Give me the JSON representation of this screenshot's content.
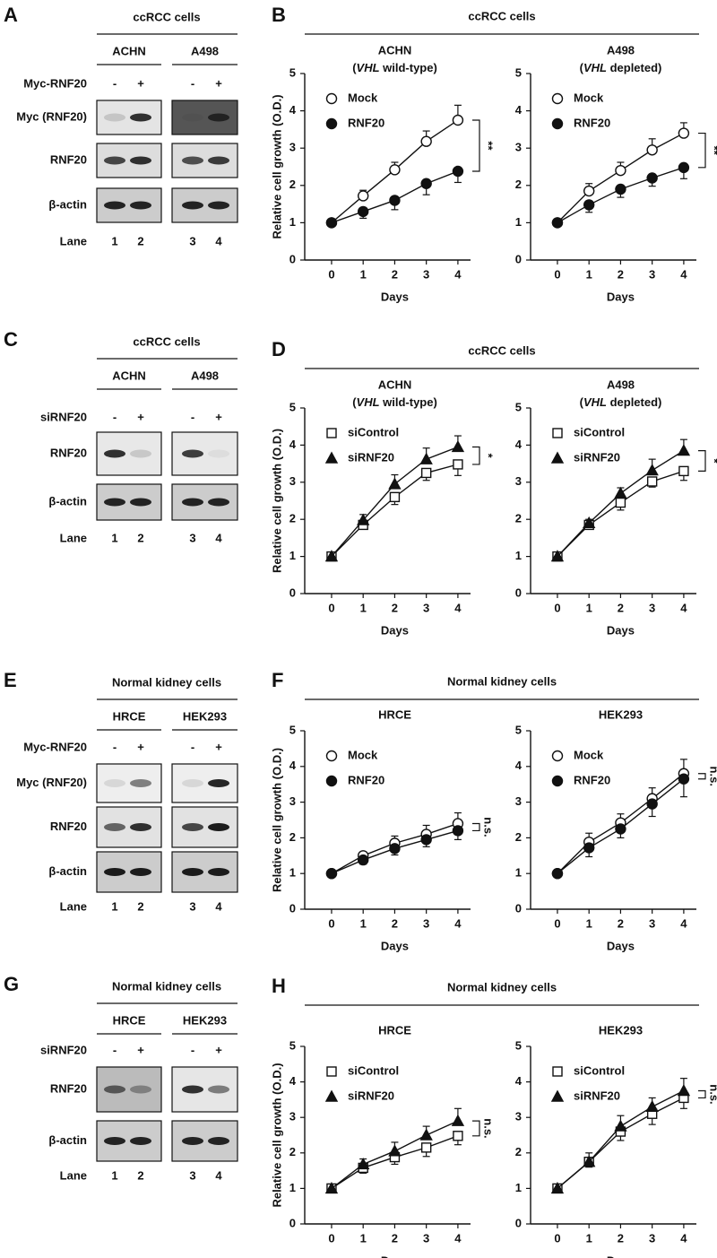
{
  "blots": [
    {
      "letter": "A",
      "header": "ccRCC cells",
      "cells": [
        "ACHN",
        "A498"
      ],
      "treatment": "Myc-RNF20",
      "signs": [
        "-",
        "+",
        "-",
        "+"
      ],
      "rows": [
        "Myc (RNF20)",
        "RNF20",
        "β-actin"
      ],
      "lane_label": "Lane",
      "lanes": [
        1,
        2,
        3,
        4
      ]
    },
    {
      "letter": "C",
      "header": "ccRCC cells",
      "cells": [
        "ACHN",
        "A498"
      ],
      "treatment": "siRNF20",
      "signs": [
        "-",
        "+",
        "-",
        "+"
      ],
      "rows": [
        "RNF20",
        "β-actin"
      ],
      "lane_label": "Lane",
      "lanes": [
        1,
        2,
        3,
        4
      ]
    },
    {
      "letter": "E",
      "header": "Normal kidney cells",
      "cells": [
        "HRCE",
        "HEK293"
      ],
      "treatment": "Myc-RNF20",
      "signs": [
        "-",
        "+",
        "-",
        "+"
      ],
      "rows": [
        "Myc (RNF20)",
        "RNF20",
        "β-actin"
      ],
      "lane_label": "Lane",
      "lanes": [
        1,
        2,
        3,
        4
      ]
    },
    {
      "letter": "G",
      "header": "Normal kidney cells",
      "cells": [
        "HRCE",
        "HEK293"
      ],
      "treatment": "siRNF20",
      "signs": [
        "-",
        "+",
        "-",
        "+"
      ],
      "rows": [
        "RNF20",
        "β-actin"
      ],
      "lane_label": "Lane",
      "lanes": [
        1,
        2,
        3,
        4
      ]
    }
  ],
  "chart_groups": [
    {
      "letter": "B",
      "header": "ccRCC cells"
    },
    {
      "letter": "D",
      "header": "ccRCC cells"
    },
    {
      "letter": "F",
      "header": "Normal kidney cells"
    },
    {
      "letter": "H",
      "header": "Normal kidney cells"
    }
  ],
  "chart_data": [
    {
      "type": "line",
      "title": "ACHN",
      "subtitle_parts": [
        {
          "text": "(",
          "italic": false
        },
        {
          "text": "VHL",
          "italic": true
        },
        {
          "text": " wild-type)",
          "italic": false
        }
      ],
      "ylabel": "Relative cell growth (O.D.)",
      "xlabel": "Days",
      "x": [
        0,
        1,
        2,
        3,
        4
      ],
      "xlim": [
        -0.85,
        4.4
      ],
      "ylim": [
        0,
        5
      ],
      "yticks": [
        0,
        1,
        2,
        3,
        4,
        5
      ],
      "significance": "**",
      "series": [
        {
          "name": "Mock",
          "marker": "open-circle",
          "error_side": "up",
          "values": [
            1,
            1.72,
            2.42,
            3.18,
            3.75
          ],
          "errors": [
            0,
            0.15,
            0.2,
            0.28,
            0.4
          ]
        },
        {
          "name": "RNF20",
          "marker": "filled-circle",
          "error_side": "down",
          "values": [
            1,
            1.3,
            1.6,
            2.05,
            2.38
          ],
          "errors": [
            0,
            0.18,
            0.25,
            0.3,
            0.3
          ]
        }
      ]
    },
    {
      "type": "line",
      "title": "A498",
      "subtitle_parts": [
        {
          "text": "(",
          "italic": false
        },
        {
          "text": "VHL",
          "italic": true
        },
        {
          "text": " depleted)",
          "italic": false
        }
      ],
      "xlabel": "Days",
      "x": [
        0,
        1,
        2,
        3,
        4
      ],
      "xlim": [
        -0.85,
        4.4
      ],
      "ylim": [
        0,
        5
      ],
      "yticks": [
        0,
        1,
        2,
        3,
        4,
        5
      ],
      "significance": "**",
      "series": [
        {
          "name": "Mock",
          "marker": "open-circle",
          "error_side": "up",
          "values": [
            1,
            1.85,
            2.4,
            2.95,
            3.4
          ],
          "errors": [
            0,
            0.2,
            0.22,
            0.3,
            0.28
          ]
        },
        {
          "name": "RNF20",
          "marker": "filled-circle",
          "error_side": "down",
          "values": [
            1,
            1.48,
            1.9,
            2.2,
            2.48
          ],
          "errors": [
            0,
            0.2,
            0.22,
            0.22,
            0.3
          ]
        }
      ]
    },
    {
      "type": "line",
      "title": "ACHN",
      "subtitle_parts": [
        {
          "text": "(",
          "italic": false
        },
        {
          "text": "VHL",
          "italic": true
        },
        {
          "text": " wild-type)",
          "italic": false
        }
      ],
      "ylabel": "Relative cell growth (O.D.)",
      "xlabel": "Days",
      "x": [
        0,
        1,
        2,
        3,
        4
      ],
      "xlim": [
        -0.85,
        4.4
      ],
      "ylim": [
        0,
        5
      ],
      "yticks": [
        0,
        1,
        2,
        3,
        4,
        5
      ],
      "significance": "*",
      "series": [
        {
          "name": "siControl",
          "marker": "open-square",
          "error_side": "down",
          "values": [
            1,
            1.85,
            2.6,
            3.25,
            3.48
          ],
          "errors": [
            0,
            0.1,
            0.2,
            0.2,
            0.3
          ]
        },
        {
          "name": "siRNF20",
          "marker": "filled-triangle",
          "error_side": "up",
          "values": [
            1,
            1.98,
            2.95,
            3.62,
            3.95
          ],
          "errors": [
            0,
            0.15,
            0.25,
            0.3,
            0.3
          ]
        }
      ]
    },
    {
      "type": "line",
      "title": "A498",
      "subtitle_parts": [
        {
          "text": "(",
          "italic": false
        },
        {
          "text": "VHL",
          "italic": true
        },
        {
          "text": " depleted)",
          "italic": false
        }
      ],
      "xlabel": "Days",
      "x": [
        0,
        1,
        2,
        3,
        4
      ],
      "xlim": [
        -0.85,
        4.4
      ],
      "ylim": [
        0,
        5
      ],
      "yticks": [
        0,
        1,
        2,
        3,
        4,
        5
      ],
      "significance": "*",
      "series": [
        {
          "name": "siControl",
          "marker": "open-square",
          "error_side": "down",
          "values": [
            1,
            1.85,
            2.45,
            3.02,
            3.3
          ],
          "errors": [
            0,
            0.1,
            0.2,
            0.15,
            0.25
          ]
        },
        {
          "name": "siRNF20",
          "marker": "filled-triangle",
          "error_side": "up",
          "values": [
            1,
            1.9,
            2.7,
            3.32,
            3.85
          ],
          "errors": [
            0,
            0.1,
            0.15,
            0.3,
            0.3
          ]
        }
      ]
    },
    {
      "type": "line",
      "title": "HRCE",
      "ylabel": "Relative cell growth (O.D.)",
      "xlabel": "Days",
      "x": [
        0,
        1,
        2,
        3,
        4
      ],
      "xlim": [
        -0.85,
        4.4
      ],
      "ylim": [
        0,
        5
      ],
      "yticks": [
        0,
        1,
        2,
        3,
        4,
        5
      ],
      "significance": "n.s.",
      "series": [
        {
          "name": "Mock",
          "marker": "open-circle",
          "error_side": "up",
          "values": [
            1,
            1.5,
            1.85,
            2.1,
            2.4
          ],
          "errors": [
            0,
            0.1,
            0.2,
            0.25,
            0.3
          ]
        },
        {
          "name": "RNF20",
          "marker": "filled-circle",
          "error_side": "down",
          "values": [
            1,
            1.38,
            1.7,
            1.95,
            2.2
          ],
          "errors": [
            0,
            0.12,
            0.18,
            0.2,
            0.25
          ]
        }
      ]
    },
    {
      "type": "line",
      "title": "HEK293",
      "xlabel": "Days",
      "x": [
        0,
        1,
        2,
        3,
        4
      ],
      "xlim": [
        -0.85,
        4.4
      ],
      "ylim": [
        0,
        5
      ],
      "yticks": [
        0,
        1,
        2,
        3,
        4,
        5
      ],
      "significance": "n.s.",
      "series": [
        {
          "name": "Mock",
          "marker": "open-circle",
          "error_side": "up",
          "values": [
            1,
            1.88,
            2.42,
            3.1,
            3.8
          ],
          "errors": [
            0,
            0.25,
            0.25,
            0.3,
            0.4
          ]
        },
        {
          "name": "RNF20",
          "marker": "filled-circle",
          "error_side": "down",
          "values": [
            1,
            1.72,
            2.25,
            2.95,
            3.65
          ],
          "errors": [
            0,
            0.25,
            0.25,
            0.35,
            0.5
          ]
        }
      ]
    },
    {
      "type": "line",
      "title": "HRCE",
      "ylabel": "Relative cell growth (O.D.)",
      "xlabel": "Days",
      "x": [
        0,
        1,
        2,
        3,
        4
      ],
      "xlim": [
        -0.85,
        4.4
      ],
      "ylim": [
        0,
        5
      ],
      "yticks": [
        0,
        1,
        2,
        3,
        4,
        5
      ],
      "significance": "n.s.",
      "series": [
        {
          "name": "siControl",
          "marker": "open-square",
          "error_side": "down",
          "values": [
            1,
            1.58,
            1.88,
            2.15,
            2.48
          ],
          "errors": [
            0,
            0.15,
            0.2,
            0.25,
            0.25
          ]
        },
        {
          "name": "siRNF20",
          "marker": "filled-triangle",
          "error_side": "up",
          "values": [
            1,
            1.68,
            2.05,
            2.5,
            2.9
          ],
          "errors": [
            0,
            0.15,
            0.25,
            0.25,
            0.35
          ]
        }
      ]
    },
    {
      "type": "line",
      "title": "HEK293",
      "xlabel": "Days",
      "x": [
        0,
        1,
        2,
        3,
        4
      ],
      "xlim": [
        -0.85,
        4.4
      ],
      "ylim": [
        0,
        5
      ],
      "yticks": [
        0,
        1,
        2,
        3,
        4,
        5
      ],
      "significance": "n.s.",
      "series": [
        {
          "name": "siControl",
          "marker": "open-square",
          "error_side": "down",
          "values": [
            1,
            1.75,
            2.6,
            3.1,
            3.55
          ],
          "errors": [
            0,
            0.15,
            0.25,
            0.3,
            0.3
          ]
        },
        {
          "name": "siRNF20",
          "marker": "filled-triangle",
          "error_side": "up",
          "values": [
            1,
            1.75,
            2.75,
            3.3,
            3.75
          ],
          "errors": [
            0,
            0.25,
            0.3,
            0.25,
            0.35
          ]
        }
      ]
    }
  ]
}
